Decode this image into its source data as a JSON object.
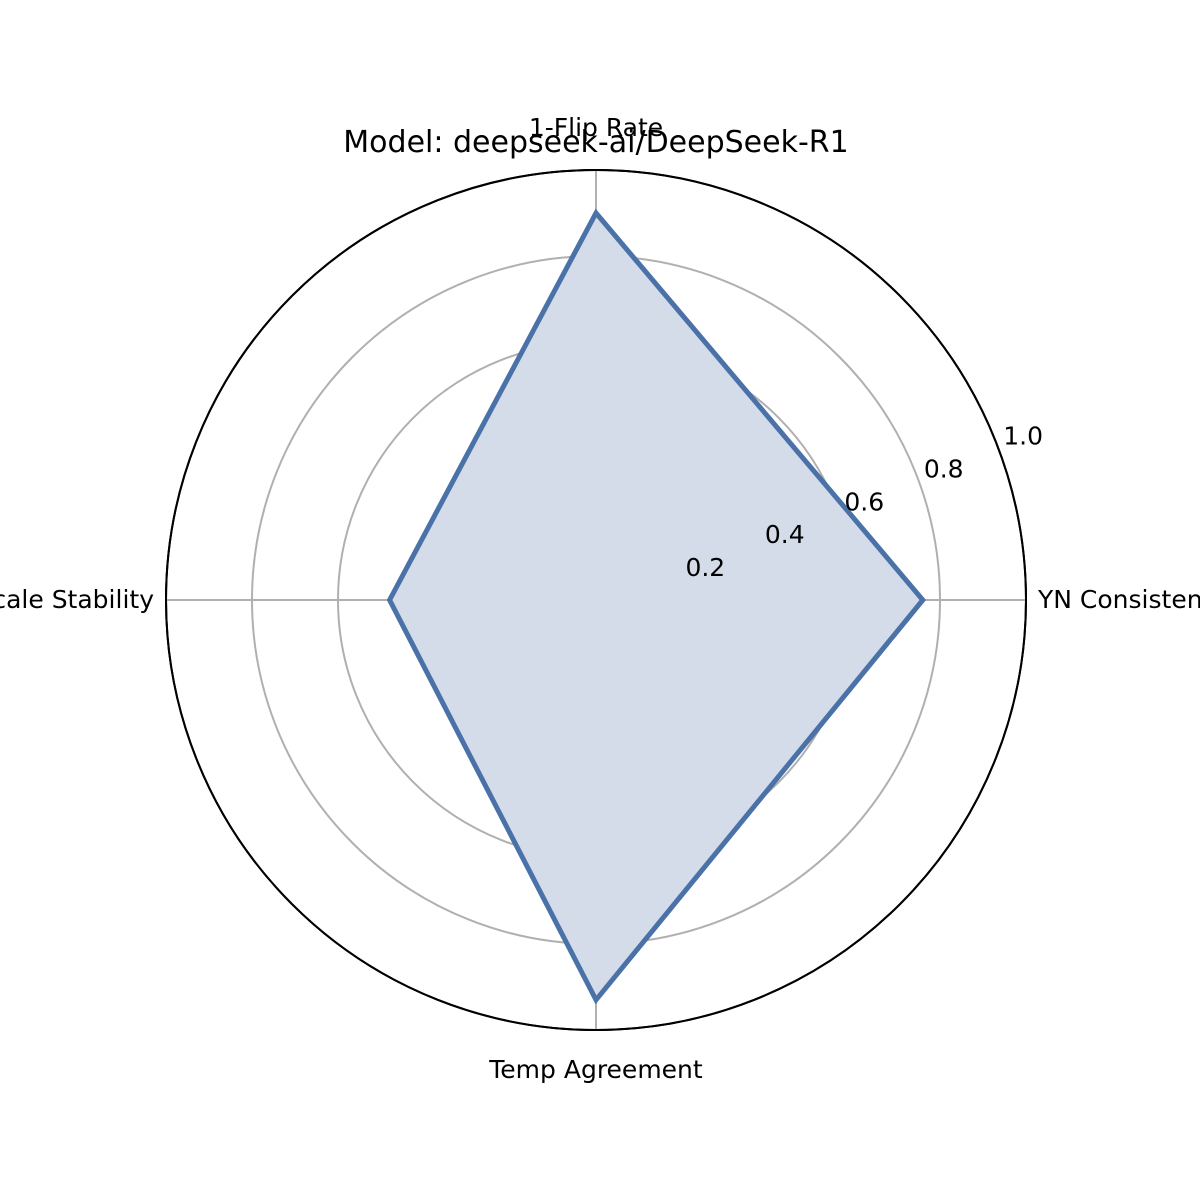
{
  "chart_data": {
    "type": "radar",
    "title": "Model: deepseek-ai/DeepSeek-R1",
    "categories": [
      "1-Flip Rate",
      "YN Consistency",
      "Temp Agreement",
      "Scale Stability"
    ],
    "series": [
      {
        "values": [
          0.9,
          0.76,
          0.93,
          0.48
        ]
      }
    ],
    "rlim": [
      0,
      1.0
    ],
    "rticks": [
      0.2,
      0.4,
      0.6,
      0.8,
      1.0
    ],
    "rtick_labels": [
      "0.2",
      "0.4",
      "0.6",
      "0.8",
      "1.0"
    ],
    "grid": true,
    "colors": {
      "line": "#4a72a8",
      "fill": "#d3dce8",
      "grid": "#b0b0b0",
      "outer": "#000000"
    }
  }
}
